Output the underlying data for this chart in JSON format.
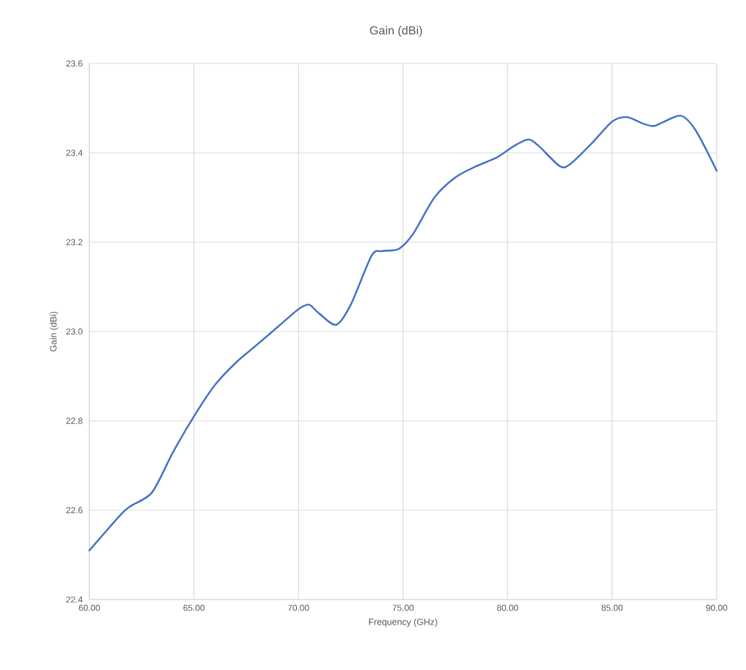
{
  "chart_data": {
    "type": "line",
    "title": "Gain (dBi)",
    "xlabel": "Frequency (GHz)",
    "ylabel": "Gain (dBi)",
    "x": [
      60,
      61.5,
      62,
      63,
      64,
      65,
      66,
      67,
      68,
      69,
      70,
      70.5,
      71,
      71.8,
      72.5,
      73.5,
      74,
      74.8,
      75.5,
      76.5,
      77.5,
      78.5,
      79.5,
      80.3,
      81,
      81.5,
      82.5,
      83,
      84,
      85,
      85.7,
      86.5,
      87,
      87.5,
      88.3,
      89,
      90
    ],
    "series": [
      {
        "color": "#4472c4",
        "values": [
          22.51,
          22.59,
          22.61,
          22.64,
          22.73,
          22.81,
          22.88,
          22.93,
          22.97,
          23.01,
          23.05,
          23.06,
          23.04,
          23.015,
          23.06,
          23.17,
          23.18,
          23.185,
          23.22,
          23.3,
          23.345,
          23.37,
          23.39,
          23.415,
          23.43,
          23.415,
          23.37,
          23.375,
          23.42,
          23.47,
          23.48,
          23.465,
          23.46,
          23.47,
          23.483,
          23.45,
          23.36
        ]
      }
    ],
    "xlim": [
      60,
      90
    ],
    "ylim": [
      22.4,
      23.6
    ],
    "xticks": [
      {
        "value": 60,
        "label": "60.00"
      },
      {
        "value": 65,
        "label": "65.00"
      },
      {
        "value": 70,
        "label": "70.00"
      },
      {
        "value": 75,
        "label": "75.00"
      },
      {
        "value": 80,
        "label": "80.00"
      },
      {
        "value": 85,
        "label": "85.00"
      },
      {
        "value": 90,
        "label": "90.00"
      }
    ],
    "yticks": [
      22.4,
      22.6,
      22.8,
      {
        "value": 23,
        "label": "23.0"
      },
      23.2,
      23.4,
      23.6
    ],
    "grid": true
  }
}
